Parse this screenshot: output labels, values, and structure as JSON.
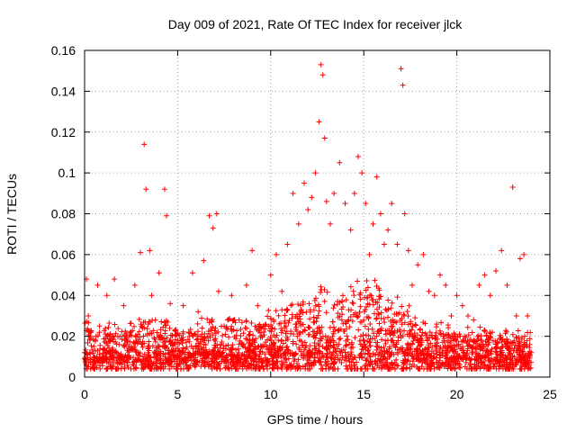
{
  "chart_data": {
    "type": "scatter",
    "title": "Day 009 of 2021, Rate Of TEC Index for receiver jlck",
    "xlabel": "GPS time / hours",
    "ylabel": "ROTI / TECUs",
    "xlim": [
      0,
      25
    ],
    "ylim": [
      0,
      0.16
    ],
    "xticks": [
      0,
      5,
      10,
      15,
      20,
      25
    ],
    "xtick_labels": [
      "0",
      "5",
      "10",
      "15",
      "20",
      "25"
    ],
    "yticks": [
      0,
      0.02,
      0.04,
      0.06,
      0.08,
      0.1,
      0.12,
      0.14,
      0.16
    ],
    "ytick_labels": [
      "0",
      "0.02",
      "0.04",
      "0.06",
      "0.08",
      "0.1",
      "0.12",
      "0.14",
      "0.16"
    ],
    "grid": true,
    "marker": "plus",
    "color": "#ff0000",
    "series": [
      {
        "x": [
          0.0,
          0.1,
          0.2,
          0.3,
          0.5,
          0.7,
          0.8,
          1.0,
          1.2,
          1.4,
          1.6,
          1.9,
          2.1,
          2.4,
          2.7,
          3.0,
          3.2,
          3.3,
          3.5,
          3.6,
          3.8,
          4.0,
          4.3,
          4.4,
          4.6,
          5.0,
          5.3,
          5.6,
          5.8,
          6.1,
          6.4,
          6.7,
          6.9,
          7.1,
          7.2,
          7.5,
          7.9,
          8.3,
          8.7,
          9.0,
          9.3,
          9.6,
          10.0,
          10.3,
          10.6,
          10.9,
          11.2,
          11.5,
          11.8,
          12.0,
          12.2,
          12.4,
          12.6,
          12.7,
          12.8,
          12.9,
          13.0,
          13.2,
          13.4,
          13.7,
          14.0,
          14.3,
          14.5,
          14.7,
          14.9,
          15.1,
          15.3,
          15.5,
          15.7,
          15.9,
          16.1,
          16.3,
          16.5,
          16.8,
          17.0,
          17.1,
          17.2,
          17.4,
          17.6,
          17.9,
          18.2,
          18.5,
          18.8,
          19.1,
          19.4,
          19.7,
          20.0,
          20.3,
          20.6,
          20.9,
          21.2,
          21.5,
          21.8,
          22.1,
          22.4,
          22.7,
          23.0,
          23.2,
          23.4,
          23.6,
          23.8,
          24.0
        ],
        "y": [
          0.012,
          0.048,
          0.03,
          0.02,
          0.015,
          0.045,
          0.025,
          0.014,
          0.04,
          0.018,
          0.048,
          0.02,
          0.035,
          0.015,
          0.045,
          0.061,
          0.114,
          0.092,
          0.062,
          0.04,
          0.028,
          0.051,
          0.092,
          0.079,
          0.036,
          0.018,
          0.035,
          0.022,
          0.051,
          0.032,
          0.057,
          0.079,
          0.073,
          0.08,
          0.042,
          0.025,
          0.04,
          0.028,
          0.045,
          0.062,
          0.035,
          0.025,
          0.05,
          0.06,
          0.042,
          0.065,
          0.09,
          0.075,
          0.095,
          0.082,
          0.088,
          0.1,
          0.125,
          0.153,
          0.148,
          0.117,
          0.086,
          0.075,
          0.09,
          0.105,
          0.085,
          0.072,
          0.09,
          0.108,
          0.1,
          0.085,
          0.06,
          0.075,
          0.098,
          0.08,
          0.065,
          0.072,
          0.085,
          0.065,
          0.151,
          0.143,
          0.08,
          0.062,
          0.045,
          0.055,
          0.06,
          0.042,
          0.04,
          0.05,
          0.045,
          0.03,
          0.04,
          0.035,
          0.03,
          0.028,
          0.045,
          0.05,
          0.04,
          0.052,
          0.062,
          0.045,
          0.093,
          0.03,
          0.058,
          0.06,
          0.03,
          0.012
        ],
        "density_envelope": {
          "x": [
            0,
            1,
            2,
            3,
            4,
            5,
            6,
            7,
            8,
            9,
            10,
            11,
            12,
            13,
            14,
            15,
            16,
            17,
            18,
            19,
            20,
            21,
            22,
            23,
            24
          ],
          "baseline": [
            0.012,
            0.013,
            0.013,
            0.014,
            0.013,
            0.013,
            0.013,
            0.014,
            0.014,
            0.014,
            0.014,
            0.016,
            0.018,
            0.02,
            0.022,
            0.024,
            0.022,
            0.02,
            0.016,
            0.014,
            0.013,
            0.013,
            0.013,
            0.012,
            0.012
          ],
          "upper": [
            0.03,
            0.025,
            0.022,
            0.03,
            0.027,
            0.022,
            0.025,
            0.028,
            0.027,
            0.024,
            0.03,
            0.033,
            0.036,
            0.04,
            0.042,
            0.045,
            0.04,
            0.034,
            0.028,
            0.024,
            0.022,
            0.022,
            0.023,
            0.02,
            0.02
          ]
        }
      }
    ]
  }
}
